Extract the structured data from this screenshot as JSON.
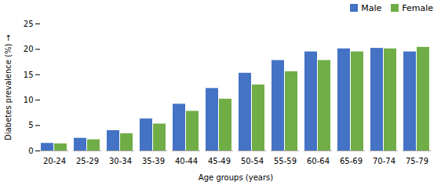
{
  "chart_data": {
    "type": "bar",
    "categories": [
      "20-24",
      "25-29",
      "30-34",
      "35-39",
      "40-44",
      "45-49",
      "50-54",
      "55-59",
      "60-64",
      "65-69",
      "70-74",
      "75-79"
    ],
    "series": [
      {
        "name": "Male",
        "color": "#4472C4",
        "values": [
          1.5,
          2.5,
          4.0,
          6.3,
          9.2,
          12.3,
          15.3,
          17.8,
          19.5,
          20.1,
          20.2,
          19.5
        ]
      },
      {
        "name": "Female",
        "color": "#70AD47",
        "values": [
          1.4,
          2.2,
          3.4,
          5.3,
          7.8,
          10.2,
          13.0,
          15.6,
          17.8,
          19.5,
          20.1,
          20.4
        ]
      }
    ],
    "xlabel": "Age groups (years)",
    "ylabel": "Diabetes prevalence (%)",
    "ylim": [
      0,
      25
    ],
    "yticks": [
      0,
      5,
      10,
      15,
      20,
      25
    ],
    "grid": false,
    "legend": "upper right"
  }
}
